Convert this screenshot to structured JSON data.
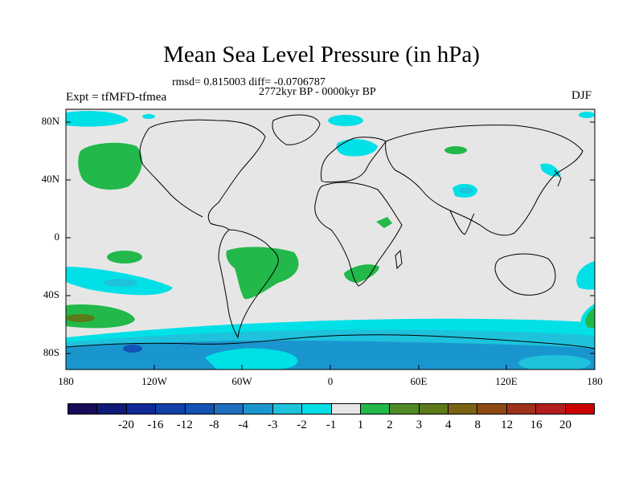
{
  "title": "Mean Sea Level Pressure (in hPa)",
  "stats": "rmsd= 0.815003 diff= -0.0706787",
  "period": "2772kyr BP - 0000kyr BP",
  "experiment": "Expt = tfMFD-tfmea",
  "season": "DJF",
  "lat_labels": [
    "80N",
    "40N",
    "0",
    "40S",
    "80S"
  ],
  "lon_labels": [
    "180",
    "120W",
    "60W",
    "0",
    "60E",
    "120E",
    "180"
  ],
  "colorbar": {
    "labels": [
      "-20",
      "-16",
      "-12",
      "-8",
      "-4",
      "-3",
      "-2",
      "-1",
      "1",
      "2",
      "3",
      "4",
      "8",
      "12",
      "16",
      "20"
    ],
    "colors": [
      "#1a0a5a",
      "#0f1a78",
      "#0f2a96",
      "#1040a8",
      "#1452b4",
      "#1f6fc0",
      "#1a96cf",
      "#1ec2dc",
      "#00e0e6",
      "#e6e6e6",
      "#22b84a",
      "#4f8a26",
      "#5c7a1a",
      "#7a6414",
      "#8e4a12",
      "#a0321a",
      "#b41e1e",
      "#cc0000"
    ]
  },
  "colors": {
    "background": "#e6e6e6",
    "cyan": "#00e0e6",
    "light_blue": "#1ec2dc",
    "mid_blue": "#1a96cf",
    "green": "#22b84a"
  }
}
